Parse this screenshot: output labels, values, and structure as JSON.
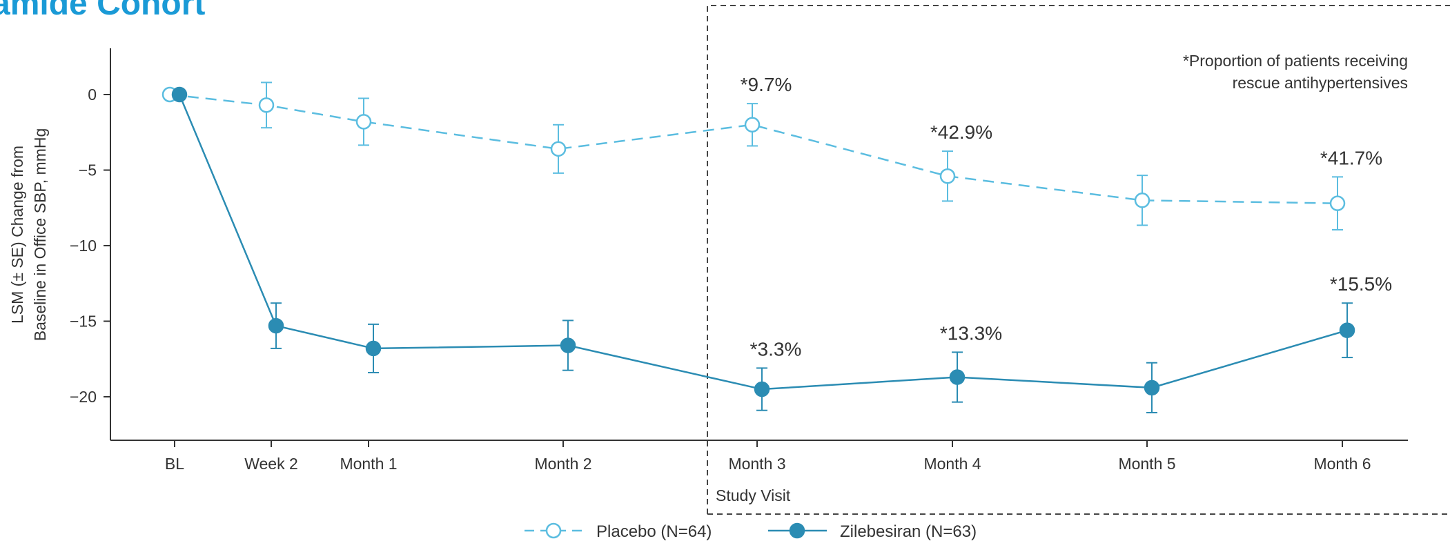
{
  "title": "amide Cohort",
  "colors": {
    "placebo": "#5bbde0",
    "zilebesiran": "#2b8cb3",
    "axis": "#333333",
    "title": "#1a9ad6"
  },
  "chart_data": {
    "type": "line",
    "categories": [
      "BL",
      "Week 2",
      "Month 1",
      "Month 2",
      "Month 3",
      "Month 4",
      "Month 5",
      "Month 6"
    ],
    "x_positions": [
      0,
      0.5,
      1,
      2,
      3,
      4,
      5,
      6
    ],
    "xlabel": "Study Visit",
    "ylabel_lines": [
      "LSM (± SE) Change from",
      "Baseline in Office SBP, mmHg"
    ],
    "yticks": [
      0,
      -5,
      -10,
      -15,
      -20
    ],
    "ylim": [
      -23,
      3
    ],
    "series": [
      {
        "name": "Placebo (N=64)",
        "key": "placebo",
        "style": "dashed-open",
        "values": [
          0,
          -0.7,
          -1.8,
          -3.6,
          -2.0,
          -5.4,
          -7.0,
          -7.2
        ],
        "se": [
          0,
          1.5,
          1.55,
          1.6,
          1.4,
          1.65,
          1.65,
          1.75
        ],
        "labels": [
          "",
          "",
          "",
          "",
          "*9.7%",
          "*42.9%",
          "",
          "*41.7%"
        ]
      },
      {
        "name": "Zilebesiran (N=63)",
        "key": "zilebesiran",
        "style": "solid-filled",
        "values": [
          0,
          -15.3,
          -16.8,
          -16.6,
          -19.5,
          -18.7,
          -19.4,
          -15.6
        ],
        "se": [
          0,
          1.5,
          1.6,
          1.65,
          1.4,
          1.65,
          1.65,
          1.8
        ],
        "labels": [
          "",
          "",
          "",
          "",
          "*3.3%",
          "*13.3%",
          "",
          "*15.5%"
        ]
      }
    ],
    "annotation": {
      "lines": [
        "*Proportion of patients receiving",
        "rescue antihypertensives"
      ],
      "region": "dashed box spanning Month 3 through Month 6"
    },
    "legend_position": "bottom-center",
    "grid": false
  }
}
